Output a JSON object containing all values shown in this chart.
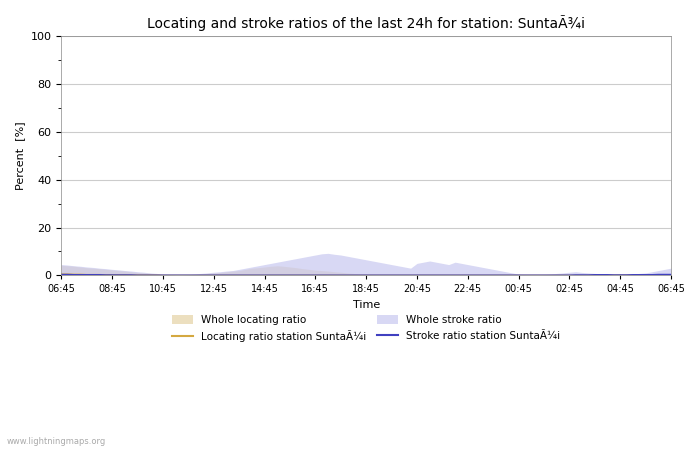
{
  "title": "Locating and stroke ratios of the last 24h for station: SuntaÃ¾i",
  "xlabel": "Time",
  "ylabel": "Percent  [%]",
  "ylim": [
    0,
    100
  ],
  "yticks": [
    0,
    20,
    40,
    60,
    80,
    100
  ],
  "yticks_minor": [
    10,
    30,
    50,
    70,
    90
  ],
  "xtick_labels": [
    "06:45",
    "08:45",
    "10:45",
    "12:45",
    "14:45",
    "16:45",
    "18:45",
    "20:45",
    "22:45",
    "00:45",
    "02:45",
    "04:45",
    "06:45"
  ],
  "background_color": "#ffffff",
  "plot_bg_color": "#ffffff",
  "grid_color": "#cccccc",
  "watermark": "www.lightningmaps.org",
  "whole_locating_fill_color": "#e8d8b0",
  "whole_locating_fill_alpha": 0.8,
  "whole_stroke_fill_color": "#c8c8f0",
  "whole_stroke_fill_alpha": 0.7,
  "locating_line_color": "#d4a840",
  "stroke_line_color": "#4040c0",
  "locating_station_line_color": "#d4a840",
  "stroke_station_line_color": "#4040c0",
  "n_points": 97,
  "whole_locating": [
    4.2,
    4.0,
    3.8,
    3.5,
    3.2,
    3.0,
    2.8,
    2.5,
    2.3,
    2.0,
    1.8,
    1.5,
    1.2,
    1.0,
    0.8,
    0.5,
    0.3,
    0.2,
    0.1,
    0.1,
    0.2,
    0.3,
    0.5,
    0.8,
    1.0,
    1.2,
    1.5,
    1.8,
    2.0,
    2.5,
    3.0,
    3.2,
    3.5,
    3.8,
    4.0,
    3.8,
    3.5,
    3.2,
    2.8,
    2.5,
    2.2,
    2.0,
    1.8,
    1.5,
    1.3,
    1.0,
    0.8,
    0.5,
    0.3,
    0.1,
    0.1,
    0.1,
    0.1,
    0.1,
    0.1,
    0.1,
    0.1,
    0.1,
    0.1,
    0.1,
    0.1,
    0.1,
    0.1,
    0.1,
    0.1,
    0.1,
    0.1,
    0.1,
    0.1,
    0.1,
    0.1,
    0.1,
    0.1,
    0.1,
    0.1,
    0.1,
    0.1,
    0.1,
    0.1,
    0.1,
    0.1,
    0.1,
    0.1,
    0.1,
    0.1,
    0.1,
    0.1,
    0.1,
    0.1,
    0.1,
    0.1,
    0.1,
    0.1,
    0.1,
    0.1,
    0.1,
    0.1
  ],
  "whole_stroke": [
    4.5,
    4.3,
    4.0,
    3.8,
    3.5,
    3.3,
    3.0,
    2.8,
    2.5,
    2.3,
    2.0,
    1.8,
    1.5,
    1.3,
    1.0,
    0.8,
    0.5,
    0.3,
    0.2,
    0.2,
    0.3,
    0.5,
    0.8,
    1.0,
    1.3,
    1.5,
    1.8,
    2.0,
    2.5,
    3.0,
    3.5,
    4.0,
    4.5,
    5.0,
    5.5,
    6.0,
    6.5,
    7.0,
    7.5,
    8.0,
    8.5,
    9.0,
    9.2,
    8.8,
    8.5,
    8.0,
    7.5,
    7.0,
    6.5,
    6.0,
    5.5,
    5.0,
    4.5,
    4.0,
    3.5,
    3.0,
    5.0,
    5.5,
    6.0,
    5.5,
    5.0,
    4.5,
    5.5,
    5.0,
    4.5,
    4.0,
    3.5,
    3.0,
    2.5,
    2.0,
    1.5,
    1.0,
    0.5,
    0.3,
    0.2,
    0.2,
    0.3,
    0.5,
    0.8,
    1.0,
    1.3,
    1.5,
    1.2,
    1.0,
    0.8,
    0.5,
    0.3,
    0.2,
    0.2,
    0.3,
    0.5,
    0.8,
    1.0,
    1.5,
    2.0,
    2.5,
    3.0
  ],
  "locating_station": [
    0.5,
    0.5,
    0.4,
    0.4,
    0.3,
    0.3,
    0.3,
    0.2,
    0.2,
    0.2,
    0.2,
    0.1,
    0.1,
    0.1,
    0.1,
    0.1,
    0.0,
    0.0,
    0.0,
    0.0,
    0.0,
    0.0,
    0.0,
    0.0,
    0.0,
    0.0,
    0.0,
    0.0,
    0.0,
    0.0,
    0.0,
    0.0,
    0.0,
    0.0,
    0.0,
    0.0,
    0.0,
    0.0,
    0.0,
    0.0,
    0.0,
    0.0,
    0.0,
    0.0,
    0.0,
    0.0,
    0.0,
    0.0,
    0.0,
    0.0,
    0.0,
    0.0,
    0.0,
    0.0,
    0.0,
    0.0,
    0.0,
    0.0,
    0.0,
    0.0,
    0.0,
    0.0,
    0.0,
    0.0,
    0.0,
    0.0,
    0.0,
    0.0,
    0.0,
    0.0,
    0.0,
    0.0,
    0.0,
    0.0,
    0.0,
    0.0,
    0.0,
    0.0,
    0.0,
    0.0,
    0.0,
    0.0,
    0.0,
    0.0,
    0.1,
    0.1,
    0.1,
    0.1,
    0.1,
    0.1,
    0.1,
    0.1,
    0.1,
    0.1,
    0.2,
    0.2,
    0.2
  ],
  "stroke_station": [
    0.3,
    0.3,
    0.2,
    0.2,
    0.2,
    0.2,
    0.2,
    0.1,
    0.1,
    0.1,
    0.1,
    0.1,
    0.0,
    0.0,
    0.0,
    0.0,
    0.0,
    0.0,
    0.0,
    0.0,
    0.0,
    0.0,
    0.0,
    0.0,
    0.0,
    0.0,
    0.0,
    0.0,
    0.0,
    0.0,
    0.0,
    0.0,
    0.0,
    0.0,
    0.0,
    0.0,
    0.0,
    0.0,
    0.0,
    0.0,
    0.0,
    0.0,
    0.0,
    0.0,
    0.0,
    0.0,
    0.0,
    0.0,
    0.0,
    0.0,
    0.0,
    0.0,
    0.0,
    0.0,
    0.0,
    0.0,
    0.0,
    0.0,
    0.0,
    0.0,
    0.0,
    0.0,
    0.0,
    0.0,
    0.0,
    0.0,
    0.0,
    0.0,
    0.0,
    0.0,
    0.0,
    0.0,
    0.0,
    0.0,
    0.0,
    0.0,
    0.0,
    0.0,
    0.0,
    0.0,
    0.0,
    0.1,
    0.1,
    0.1,
    0.2,
    0.2,
    0.2,
    0.1,
    0.1,
    0.1,
    0.2,
    0.2,
    0.2,
    0.2,
    0.3,
    0.3,
    0.3
  ]
}
